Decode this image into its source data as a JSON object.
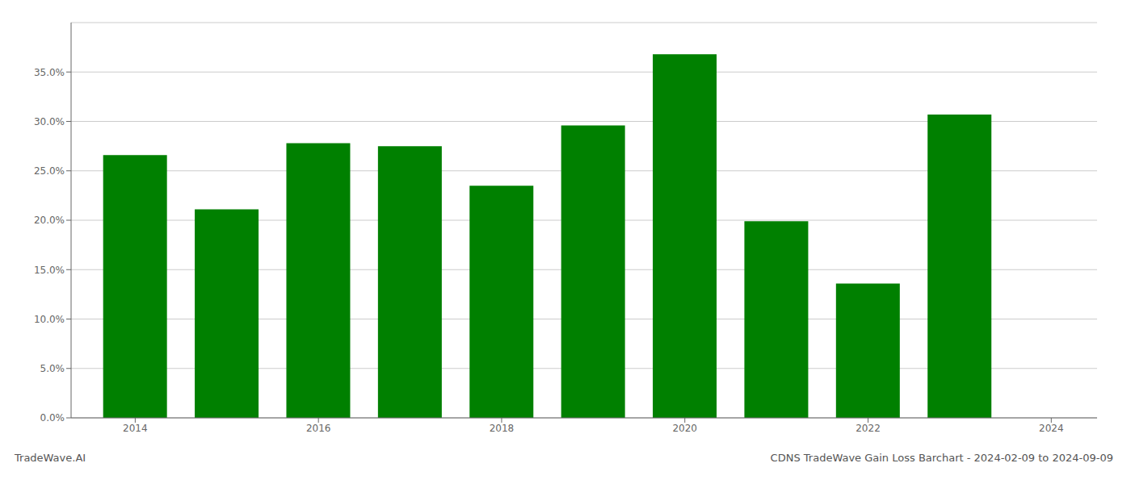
{
  "chart_data": {
    "type": "bar",
    "x": [
      2014,
      2015,
      2016,
      2017,
      2018,
      2019,
      2020,
      2021,
      2022,
      2023
    ],
    "values": [
      0.266,
      0.211,
      0.278,
      0.275,
      0.235,
      0.296,
      0.368,
      0.199,
      0.136,
      0.307
    ],
    "color": "#008000",
    "xlim": [
      2013.3,
      2024.5
    ],
    "xticks": [
      2014,
      2016,
      2018,
      2020,
      2022,
      2024
    ],
    "ylim": [
      0,
      0.4
    ],
    "yticks": [
      {
        "value": 0.0,
        "label": "0.0%"
      },
      {
        "value": 0.05,
        "label": "5.0%"
      },
      {
        "value": 0.1,
        "label": "10.0%"
      },
      {
        "value": 0.15,
        "label": "15.0%"
      },
      {
        "value": 0.2,
        "label": "20.0%"
      },
      {
        "value": 0.25,
        "label": "25.0%"
      },
      {
        "value": 0.3,
        "label": "30.0%"
      },
      {
        "value": 0.35,
        "label": "35.0%"
      }
    ],
    "grid": true,
    "annotations": [
      "TradeWave.AI",
      "CDNS TradeWave Gain Loss Barchart - 2024-02-09 to 2024-09-09"
    ]
  }
}
